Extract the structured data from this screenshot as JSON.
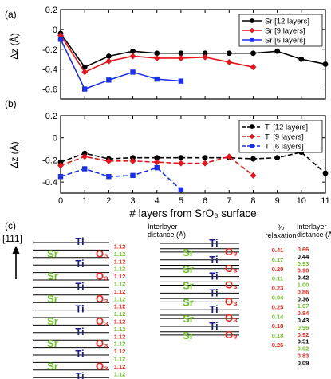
{
  "chart_data": [
    {
      "panel_label": "(a)",
      "type": "line",
      "ylabel": "Δz (Å)",
      "xlim": [
        0,
        11
      ],
      "ylim": [
        -0.7,
        0.2
      ],
      "yticks": [
        "0.2",
        "0",
        "-0.2",
        "-0.4",
        "-0.6"
      ],
      "legend_position": "top-right",
      "series": [
        {
          "name": "Sr [12 layers]",
          "color": "#000000",
          "marker": "circle",
          "dashed": false,
          "x": [
            0,
            1,
            2,
            3,
            4,
            5,
            6,
            7,
            8,
            9,
            10,
            11
          ],
          "y": [
            -0.04,
            -0.38,
            -0.27,
            -0.22,
            -0.24,
            -0.24,
            -0.24,
            -0.24,
            -0.24,
            -0.22,
            -0.3,
            -0.35
          ]
        },
        {
          "name": "Sr [9 layers]",
          "color": "#e8141c",
          "marker": "diamond",
          "dashed": false,
          "x": [
            0,
            1,
            2,
            3,
            4,
            5,
            6,
            7,
            8
          ],
          "y": [
            -0.06,
            -0.43,
            -0.32,
            -0.27,
            -0.29,
            -0.29,
            -0.28,
            -0.33,
            -0.38
          ]
        },
        {
          "name": "Sr [6 layers]",
          "color": "#1b2ff0",
          "marker": "square",
          "dashed": false,
          "x": [
            0,
            1,
            2,
            3,
            4,
            5
          ],
          "y": [
            -0.1,
            -0.6,
            -0.51,
            -0.43,
            -0.5,
            -0.52
          ]
        }
      ]
    },
    {
      "panel_label": "(b)",
      "type": "line",
      "ylabel": "Δz (Å)",
      "xlabel": "# layers from SrO₃ surface",
      "xlim": [
        0,
        11
      ],
      "ylim": [
        -0.5,
        0.2
      ],
      "xticks": [
        "0",
        "1",
        "2",
        "3",
        "4",
        "5",
        "6",
        "7",
        "8",
        "9",
        "10",
        "11"
      ],
      "yticks": [
        "0.2",
        "0",
        "-0.2",
        "-0.4"
      ],
      "legend_position": "top-right",
      "series": [
        {
          "name": "Ti [12 layers]",
          "color": "#000000",
          "marker": "circle",
          "dashed": true,
          "x": [
            0,
            1,
            2,
            3,
            4,
            5,
            6,
            7,
            8,
            9,
            10,
            11
          ],
          "y": [
            -0.22,
            -0.14,
            -0.19,
            -0.18,
            -0.18,
            -0.18,
            -0.18,
            -0.18,
            -0.19,
            -0.18,
            -0.13,
            -0.32
          ]
        },
        {
          "name": "Ti [9 layers]",
          "color": "#e8141c",
          "marker": "diamond",
          "dashed": true,
          "x": [
            0,
            1,
            2,
            3,
            4,
            5,
            6,
            7,
            8
          ],
          "y": [
            -0.25,
            -0.17,
            -0.21,
            -0.21,
            -0.22,
            -0.23,
            -0.23,
            -0.17,
            -0.34
          ]
        },
        {
          "name": "Ti [6 layers]",
          "color": "#1b2ff0",
          "marker": "square",
          "dashed": true,
          "x": [
            0,
            1,
            2,
            3,
            4,
            5
          ],
          "y": [
            -0.35,
            -0.28,
            -0.35,
            -0.34,
            -0.27,
            -0.47
          ]
        }
      ]
    }
  ],
  "panel_c": {
    "label": "(c)",
    "direction": "[111]",
    "interlayer_header": [
      "Interlayer",
      "distance (Å)"
    ],
    "relaxation_header": [
      "%",
      "relaxation"
    ],
    "interlayer_header_right": [
      "Interlayer",
      "distance (Å)"
    ],
    "atoms": {
      "ti": "Ti",
      "sr": "Sr",
      "o3": "O₃"
    },
    "ideal_distances": [
      "1.12",
      "1.12",
      "1.12",
      "1.12",
      "1.12",
      "1.12",
      "1.12",
      "1.12",
      "1.12",
      "1.12",
      "1.12",
      "1.12",
      "1.12",
      "1.12",
      "1.12",
      "1.12",
      "1.12",
      "1.12",
      "1.12"
    ],
    "ideal_colors": [
      "r",
      "g",
      "r",
      "g",
      "r",
      "g",
      "r",
      "g",
      "r",
      "g",
      "r",
      "g",
      "r",
      "g",
      "r",
      "g",
      "r",
      "g",
      "r"
    ],
    "relaxation_pct": [
      "0.41",
      "0.17",
      "0.20",
      "0.11",
      "0.23",
      "0.04",
      "0.25",
      "0.14",
      "0.18",
      "0.18",
      "0.26"
    ],
    "relaxation_colors": [
      "r",
      "g",
      "r",
      "g",
      "r",
      "g",
      "r",
      "g",
      "r",
      "g",
      "r"
    ],
    "relaxed_distances": [
      "0.66",
      "0.44",
      "0.93",
      "0.90",
      "0.42",
      "1.00",
      "0.86",
      "0.36",
      "1.07",
      "0.84",
      "0.43",
      "0.96",
      "0.92",
      "0.51",
      "0.92",
      "0.83",
      "0.09"
    ],
    "relaxed_colors": [
      "r",
      "k",
      "g",
      "r",
      "k",
      "g",
      "r",
      "k",
      "g",
      "r",
      "k",
      "g",
      "r",
      "k",
      "g",
      "r",
      "k"
    ]
  }
}
